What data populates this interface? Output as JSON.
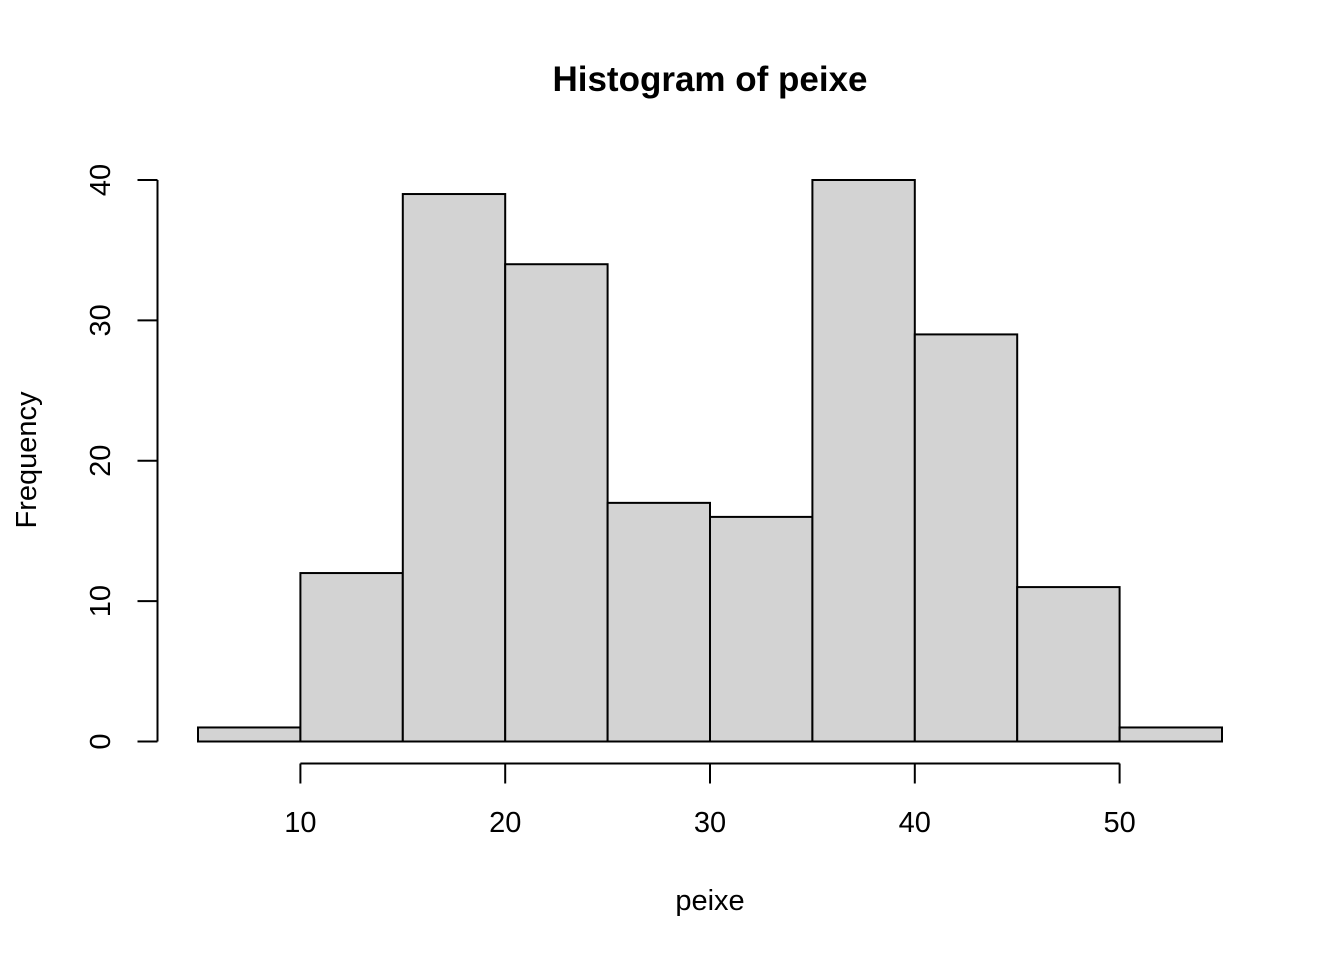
{
  "chart_data": {
    "type": "bar",
    "title": "Histogram of peixe",
    "xlabel": "peixe",
    "ylabel": "Frequency",
    "bin_edges": [
      5,
      10,
      15,
      20,
      25,
      30,
      35,
      40,
      45,
      50,
      55
    ],
    "values": [
      1,
      12,
      39,
      34,
      17,
      16,
      40,
      29,
      11,
      1
    ],
    "xlim": [
      5,
      55
    ],
    "ylim": [
      0,
      40
    ],
    "x_ticks": [
      10,
      20,
      30,
      40,
      50
    ],
    "y_ticks": [
      0,
      10,
      20,
      30,
      40
    ],
    "grid": false,
    "bar_color": "#d3d3d3"
  }
}
